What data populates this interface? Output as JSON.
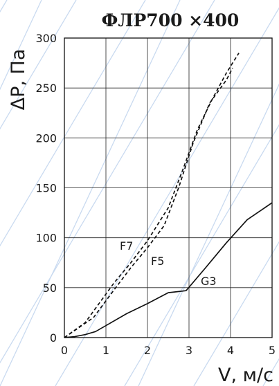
{
  "chart_data": {
    "type": "line",
    "title": "ФЛР700 ×400",
    "xlabel": "V, м/с",
    "ylabel": "ΔP, Па",
    "xlim": [
      0,
      5
    ],
    "ylim": [
      0,
      300
    ],
    "x_ticks": [
      "0",
      "1",
      "2",
      "3",
      "4",
      "5"
    ],
    "y_ticks": [
      "0",
      "50",
      "100",
      "150",
      "200",
      "250",
      "300"
    ],
    "grid": true,
    "series": [
      {
        "name": "G3",
        "style": "solid",
        "x": [
          0,
          0.25,
          0.5,
          0.75,
          1.0,
          1.5,
          2.0,
          2.5,
          2.93,
          3.4,
          3.9,
          4.4,
          5.0
        ],
        "y": [
          0,
          1,
          3,
          6,
          12,
          24,
          34,
          45,
          47,
          70,
          95,
          118,
          135
        ]
      },
      {
        "name": "F5",
        "style": "dashed",
        "x": [
          0,
          0.7,
          1.2,
          1.6,
          2.0,
          2.4,
          2.75,
          3.1,
          3.5,
          3.9,
          4.05
        ],
        "y": [
          0,
          20,
          48,
          70,
          90,
          112,
          150,
          195,
          235,
          258,
          270
        ]
      },
      {
        "name": "F7",
        "style": "dashed",
        "x": [
          0,
          0.5,
          0.85,
          1.2,
          1.6,
          2.0,
          2.5,
          2.85,
          3.2,
          3.55,
          3.9,
          4.2
        ],
        "y": [
          0,
          15,
          35,
          55,
          75,
          97,
          130,
          168,
          208,
          238,
          265,
          285
        ]
      }
    ],
    "annotations": [
      "F7",
      "F5",
      "G3"
    ]
  }
}
